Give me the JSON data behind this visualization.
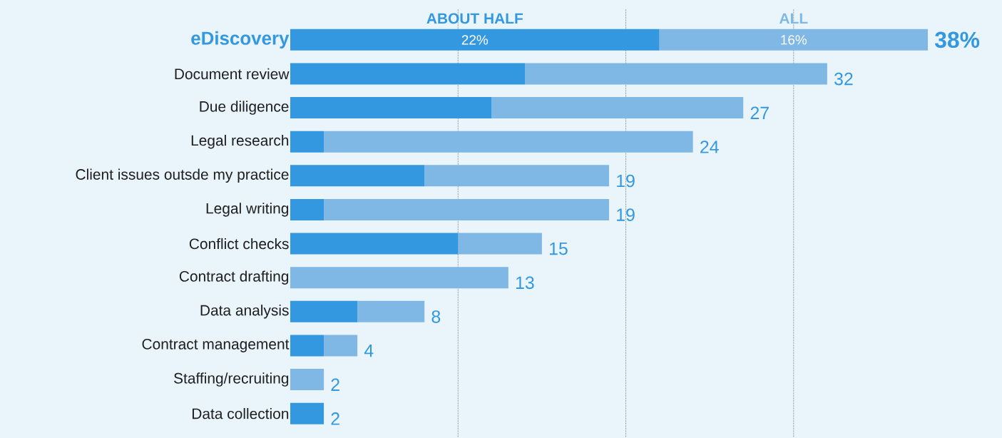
{
  "chart_data": {
    "type": "bar",
    "orientation": "horizontal",
    "stacked": true,
    "categories": [
      "eDiscovery",
      "Document review",
      "Due diligence",
      "Legal research",
      "Client issues outsde my practice",
      "Legal writing",
      "Conflict checks",
      "Contract drafting",
      "Data analysis",
      "Contract management",
      "Staffing/recruiting",
      "Data collection"
    ],
    "series": [
      {
        "name": "ABOUT HALF",
        "color": "#3398df",
        "values": [
          22,
          14,
          12,
          2,
          8,
          2,
          10,
          0,
          4,
          2,
          0,
          2
        ],
        "value_labels": [
          "22%",
          null,
          null,
          null,
          null,
          null,
          null,
          null,
          null,
          null,
          null,
          null
        ]
      },
      {
        "name": "ALL",
        "color": "#7fb8e4",
        "values": [
          16,
          18,
          15,
          22,
          11,
          17,
          5,
          13,
          4,
          2,
          2,
          0
        ],
        "value_labels": [
          "16%",
          null,
          null,
          null,
          null,
          null,
          null,
          null,
          null,
          null,
          null,
          null
        ]
      }
    ],
    "totals": [
      "38%",
      "32",
      "27",
      "24",
      "19",
      "19",
      "15",
      "13",
      "8",
      "4",
      "2",
      "2"
    ],
    "xlim": [
      0,
      38
    ],
    "xticks": [
      {
        "value": 10,
        "label": null
      },
      {
        "value": 20,
        "label": null
      },
      {
        "value": 30,
        "label": null
      }
    ],
    "grid": "x",
    "legend": "top",
    "tick_labels": "y"
  }
}
